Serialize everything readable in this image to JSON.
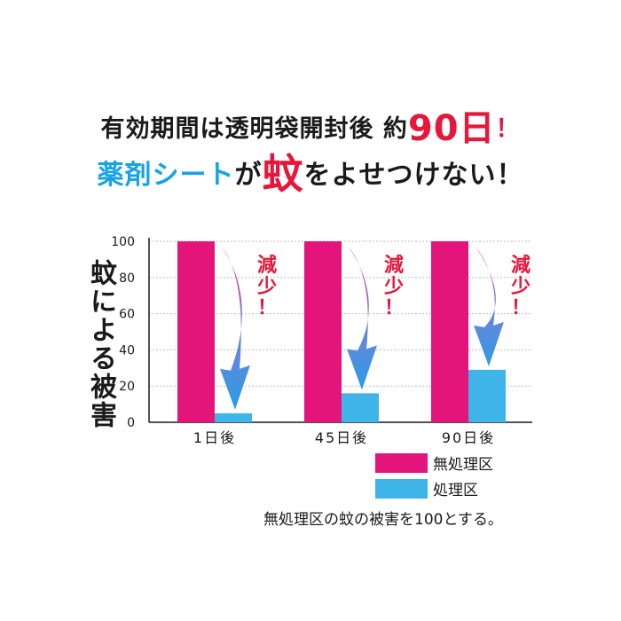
{
  "headline": {
    "line1_prefix": "有効期間は透明袋開封後 約",
    "line1_days": "90日",
    "line1_excl": "！",
    "line2_blue": "薬剤シート",
    "line2_mid": "が",
    "line2_red": "蚊",
    "line2_suffix": "をよせつけない！"
  },
  "annotation_text": "減少！",
  "note": "無処理区の蚊の被害を100とする。",
  "colors": {
    "untreated": "#e3157a",
    "treated": "#3fb4e8",
    "reduction_text": "#e6173b"
  },
  "chart_data": {
    "type": "bar",
    "ylabel": "蚊による被害",
    "ylim": [
      0,
      100
    ],
    "yticks": [
      0,
      20,
      40,
      60,
      80,
      100
    ],
    "grid": true,
    "legend_position": "bottom-right",
    "categories": [
      "1日後",
      "45日後",
      "90日後"
    ],
    "series": [
      {
        "name": "無処理区",
        "values": [
          100,
          100,
          100
        ]
      },
      {
        "name": "処理区",
        "values": [
          5,
          16,
          29
        ]
      }
    ]
  }
}
